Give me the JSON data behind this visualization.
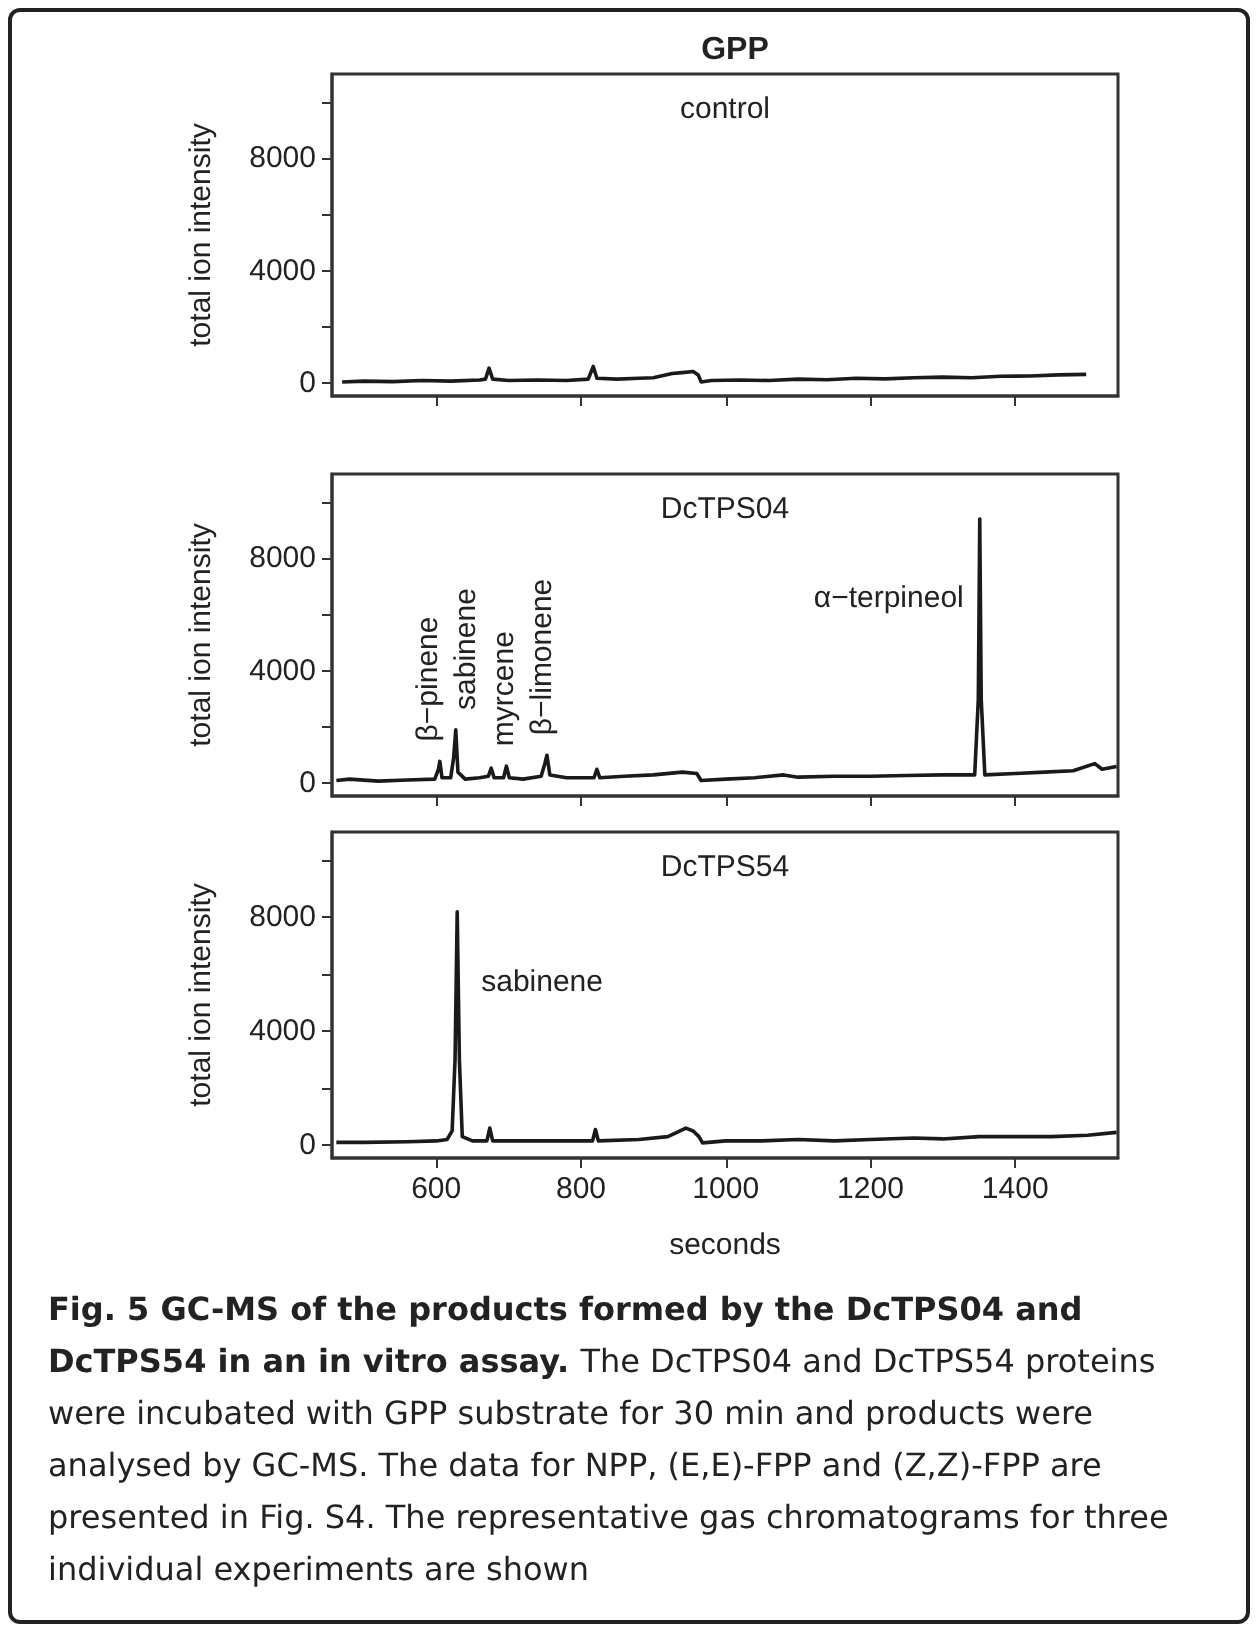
{
  "chart_data": [
    {
      "type": "line",
      "title": "GPP",
      "subtitle": "control",
      "ylabel": "total ion intensity",
      "xlim": [
        456,
        1542
      ],
      "xticks": [
        600,
        800,
        1000,
        1200,
        1400
      ],
      "ylim": [
        -450,
        11000
      ],
      "yticks": [
        0,
        {
          "value": 2000,
          "label": null
        },
        4000,
        {
          "value": 6000,
          "label": null
        },
        8000,
        {
          "value": 10000,
          "label": null
        }
      ],
      "tick_labels": "y",
      "grid": false,
      "marker": "none",
      "line_style": "solid",
      "series": [
        {
          "color": "#1a1a1a",
          "x": [
            470,
            500,
            540,
            580,
            620,
            660,
            668,
            673,
            678,
            700,
            740,
            780,
            810,
            817,
            822,
            850,
            880,
            900,
            926,
            940,
            955,
            962,
            966,
            980,
            1020,
            1060,
            1100,
            1140,
            1180,
            1220,
            1260,
            1300,
            1340,
            1380,
            1420,
            1460,
            1498
          ],
          "values": [
            50,
            80,
            60,
            100,
            80,
            120,
            150,
            540,
            150,
            100,
            120,
            100,
            150,
            600,
            180,
            150,
            180,
            200,
            350,
            380,
            420,
            300,
            50,
            100,
            120,
            100,
            150,
            130,
            180,
            160,
            200,
            220,
            200,
            250,
            260,
            300,
            320
          ]
        }
      ]
    },
    {
      "type": "line",
      "subtitle": "DcTPS04",
      "ylabel": "total ion intensity",
      "xlim": [
        456,
        1542
      ],
      "xticks": [
        600,
        800,
        1000,
        1200,
        1400
      ],
      "ylim": [
        -450,
        11000
      ],
      "yticks": [
        0,
        {
          "value": 2000,
          "label": null
        },
        4000,
        {
          "value": 6000,
          "label": null
        },
        8000,
        {
          "value": 10000,
          "label": null
        }
      ],
      "tick_labels": "y",
      "grid": false,
      "marker": "none",
      "line_style": "solid",
      "annotations": [
        {
          "text": "β−pinene",
          "x": 605,
          "y": 780
        },
        {
          "text": "sabinene",
          "x": 627,
          "y": 1900
        },
        {
          "text": "myrcene",
          "x": 697,
          "y": 610
        },
        {
          "text": "β−limonene",
          "x": 753,
          "y": 1000
        },
        {
          "text": "α−terpineol",
          "x": 1351,
          "y": 9400
        }
      ],
      "series": [
        {
          "color": "#1a1a1a",
          "x": [
            462,
            480,
            520,
            560,
            598,
            603,
            605,
            608,
            620,
            624,
            627,
            630,
            640,
            660,
            672,
            676,
            680,
            693,
            697,
            701,
            720,
            745,
            750,
            753,
            757,
            780,
            818,
            822,
            826,
            860,
            900,
            940,
            960,
            966,
            1000,
            1040,
            1080,
            1100,
            1150,
            1200,
            1250,
            1300,
            1344,
            1349,
            1351,
            1353,
            1358,
            1400,
            1440,
            1480,
            1510,
            1520,
            1540
          ],
          "values": [
            100,
            150,
            80,
            120,
            150,
            500,
            780,
            200,
            200,
            900,
            1900,
            400,
            150,
            200,
            250,
            540,
            200,
            200,
            610,
            200,
            150,
            250,
            700,
            1000,
            300,
            200,
            200,
            500,
            200,
            250,
            300,
            400,
            350,
            100,
            150,
            200,
            300,
            220,
            250,
            250,
            280,
            300,
            300,
            3000,
            9400,
            3000,
            300,
            350,
            400,
            450,
            700,
            500,
            600
          ]
        }
      ]
    },
    {
      "type": "line",
      "subtitle": "DcTPS54",
      "ylabel": "total ion intensity",
      "xlabel": "seconds",
      "xlim": [
        456,
        1542
      ],
      "xticks": [
        600,
        800,
        1000,
        1200,
        1400
      ],
      "ylim": [
        -450,
        11000
      ],
      "yticks": [
        0,
        {
          "value": 2000,
          "label": null
        },
        4000,
        {
          "value": 6000,
          "label": null
        },
        8000,
        {
          "value": 10000,
          "label": null
        }
      ],
      "grid": false,
      "marker": "none",
      "line_style": "solid",
      "annotations": [
        {
          "text": "sabinene",
          "x": 629,
          "y": 8200
        },
        "Fig. 5 GC-MS of the products formed by the DcTPS04 and DcTPS54 in an in vitro assay.",
        "The DcTPS04 and DcTPS54 proteins were incubated with GPP substrate for 30 min and products were analysed by GC-MS. The data for NPP, (E,E)-FPP and (Z,Z)-FPP are presented in Fig. S4. The representative gas chromatograms for three individual experiments are shown"
      ],
      "series": [
        {
          "color": "#1a1a1a",
          "x": [
            462,
            500,
            560,
            600,
            615,
            622,
            626,
            629,
            632,
            636,
            650,
            670,
            674,
            678,
            720,
            780,
            816,
            820,
            824,
            880,
            920,
            945,
            955,
            963,
            968,
            1000,
            1050,
            1100,
            1150,
            1200,
            1260,
            1300,
            1350,
            1400,
            1450,
            1500,
            1540
          ],
          "values": [
            100,
            100,
            120,
            150,
            200,
            500,
            3000,
            8200,
            3000,
            300,
            150,
            150,
            600,
            150,
            150,
            150,
            150,
            550,
            150,
            200,
            300,
            600,
            500,
            300,
            80,
            150,
            150,
            200,
            150,
            200,
            250,
            220,
            300,
            300,
            300,
            350,
            450
          ]
        }
      ]
    }
  ]
}
